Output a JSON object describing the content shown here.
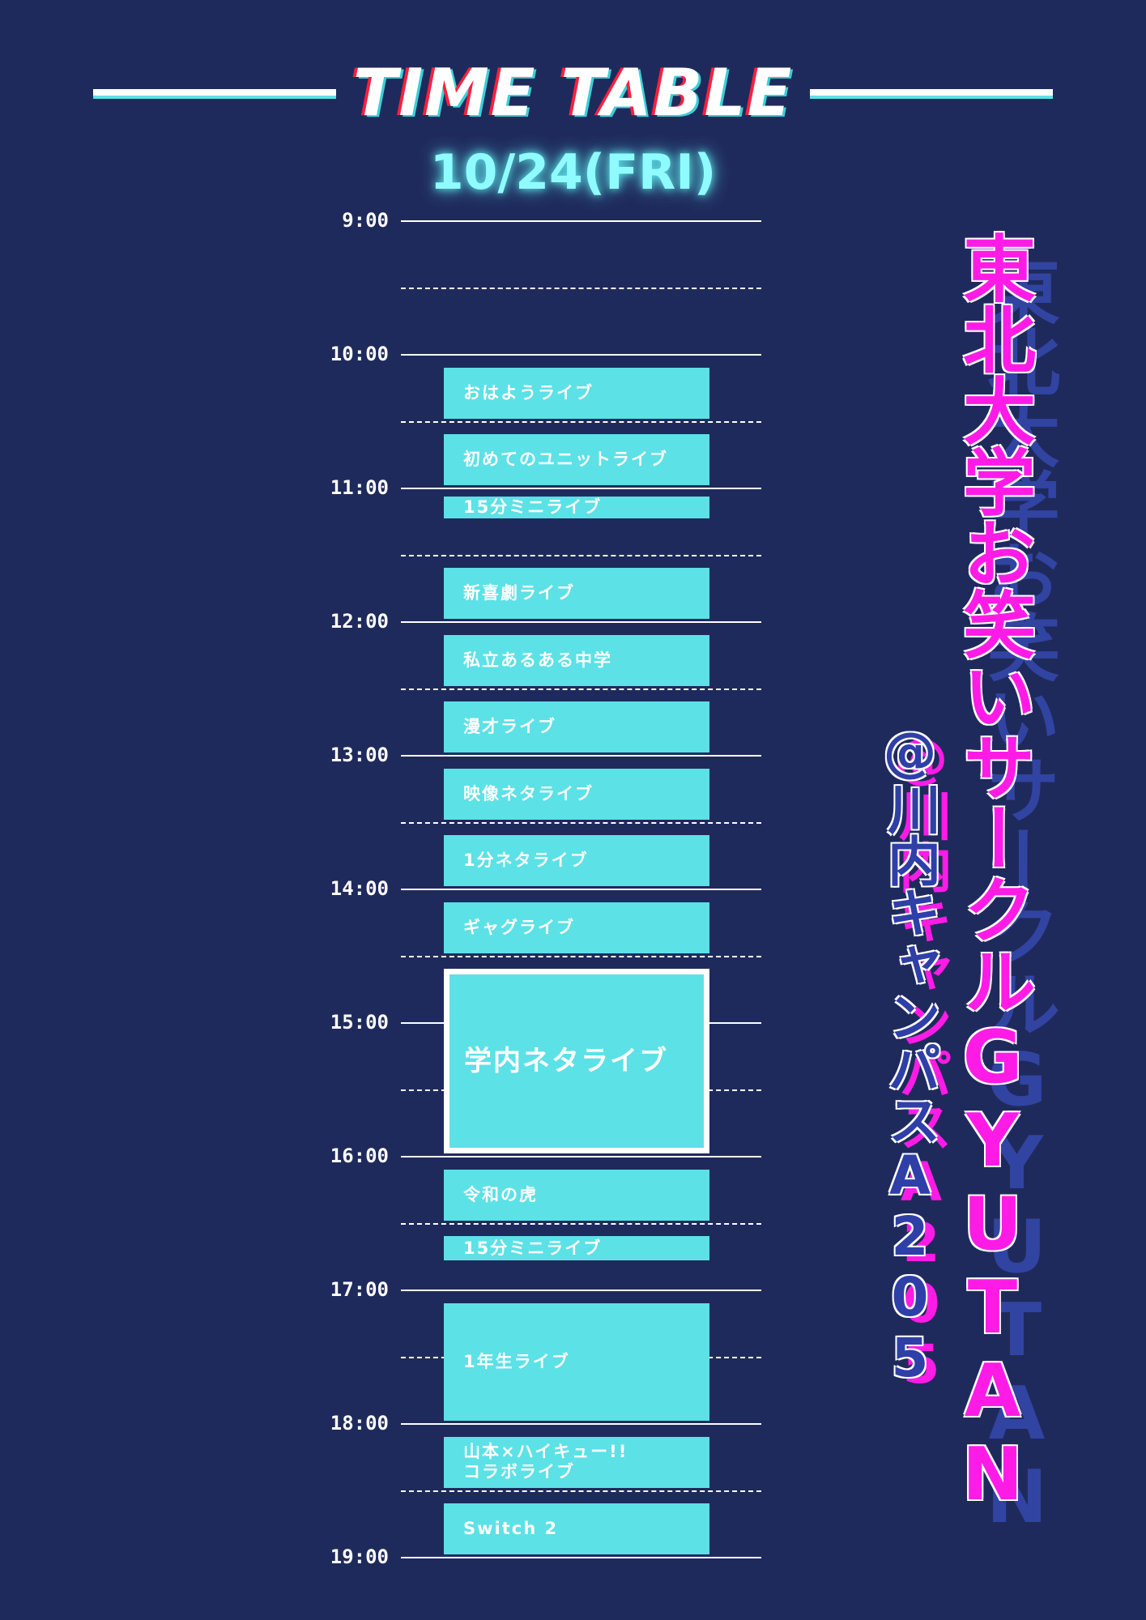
{
  "header": {
    "title": "TIME TABLE",
    "date": "10/24(FRI)"
  },
  "side": {
    "title": "東北大学お笑いサークルGYUTAN",
    "subtitle": "@川内キャンパスA205"
  },
  "timeline": {
    "hours": [
      "9:00",
      "10:00",
      "11:00",
      "12:00",
      "13:00",
      "14:00",
      "15:00",
      "16:00",
      "17:00",
      "18:00",
      "19:00"
    ]
  },
  "events": [
    {
      "label": "おはようライブ",
      "start": "10:05",
      "end": "10:30"
    },
    {
      "label": "初めてのユニットライブ",
      "start": "10:35",
      "end": "11:00"
    },
    {
      "label": "15分ミニライブ",
      "start": "11:03",
      "end": "11:15"
    },
    {
      "label": "新喜劇ライブ",
      "start": "11:35",
      "end": "12:00"
    },
    {
      "label": "私立あるある中学",
      "start": "12:05",
      "end": "12:30"
    },
    {
      "label": "漫才ライブ",
      "start": "12:35",
      "end": "13:00"
    },
    {
      "label": "映像ネタライブ",
      "start": "13:05",
      "end": "13:30"
    },
    {
      "label": "1分ネタライブ",
      "start": "13:35",
      "end": "14:00"
    },
    {
      "label": "ギャグライブ",
      "start": "14:05",
      "end": "14:30"
    },
    {
      "label": "学内ネタライブ",
      "start": "14:35",
      "end": "16:00",
      "featured": true
    },
    {
      "label": "令和の虎",
      "start": "16:05",
      "end": "16:30"
    },
    {
      "label": "15分ミニライブ",
      "start": "16:35",
      "end": "16:48"
    },
    {
      "label": "1年生ライブ",
      "start": "17:05",
      "end": "18:00"
    },
    {
      "label": "山本×ハイキュー!!\nコラボライブ",
      "start": "18:05",
      "end": "18:30"
    },
    {
      "label": "Switch 2",
      "start": "18:35",
      "end": "19:00"
    }
  ]
}
